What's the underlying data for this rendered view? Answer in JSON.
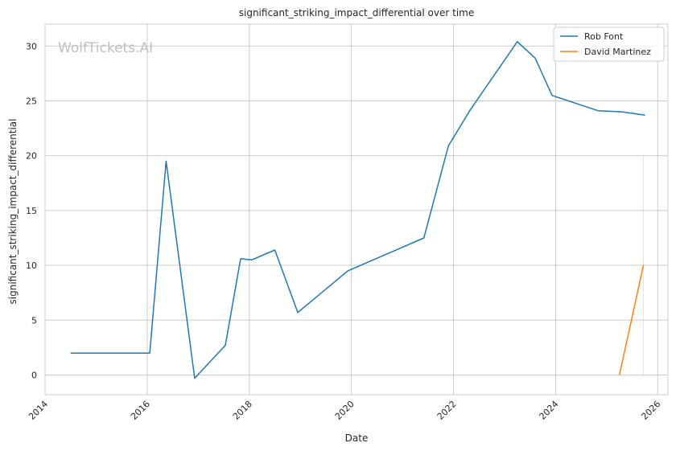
{
  "watermark": "WolfTickets.AI",
  "chart_data": {
    "type": "line",
    "title": "significant_striking_impact_differential over time",
    "xlabel": "Date",
    "ylabel": "significant_striking_impact_differential",
    "xlim": [
      2014.0,
      2026.2
    ],
    "ylim": [
      -1.8,
      32.0
    ],
    "x_ticks": [
      2014,
      2016,
      2018,
      2020,
      2022,
      2024,
      2026
    ],
    "x_tick_labels": [
      "2014",
      "2016",
      "2018",
      "2020",
      "2022",
      "2024",
      "2026"
    ],
    "y_ticks": [
      0,
      5,
      10,
      15,
      20,
      25,
      30
    ],
    "y_tick_labels": [
      "0",
      "5",
      "10",
      "15",
      "20",
      "25",
      "30"
    ],
    "grid": true,
    "legend_position": "top-right",
    "series": [
      {
        "name": "Rob Font",
        "color": "#1f77b4",
        "x": [
          2014.5,
          2016.05,
          2016.37,
          2016.93,
          2017.53,
          2017.83,
          2018.05,
          2018.5,
          2018.95,
          2019.93,
          2021.42,
          2021.9,
          2022.33,
          2023.25,
          2023.6,
          2023.93,
          2024.83,
          2025.3,
          2025.75
        ],
        "y": [
          2.0,
          2.0,
          19.5,
          -0.3,
          2.7,
          10.6,
          10.5,
          11.4,
          5.7,
          9.5,
          12.5,
          20.9,
          24.2,
          30.4,
          28.9,
          25.5,
          24.1,
          24.0,
          23.7
        ]
      },
      {
        "name": "David Martinez",
        "color": "#ff7f0e",
        "x": [
          2025.25,
          2025.72
        ],
        "y": [
          0.0,
          10.0
        ]
      }
    ],
    "band": {
      "series": "David Martinez",
      "x": 2025.72,
      "y_range": [
        0.0,
        20.0
      ]
    }
  }
}
